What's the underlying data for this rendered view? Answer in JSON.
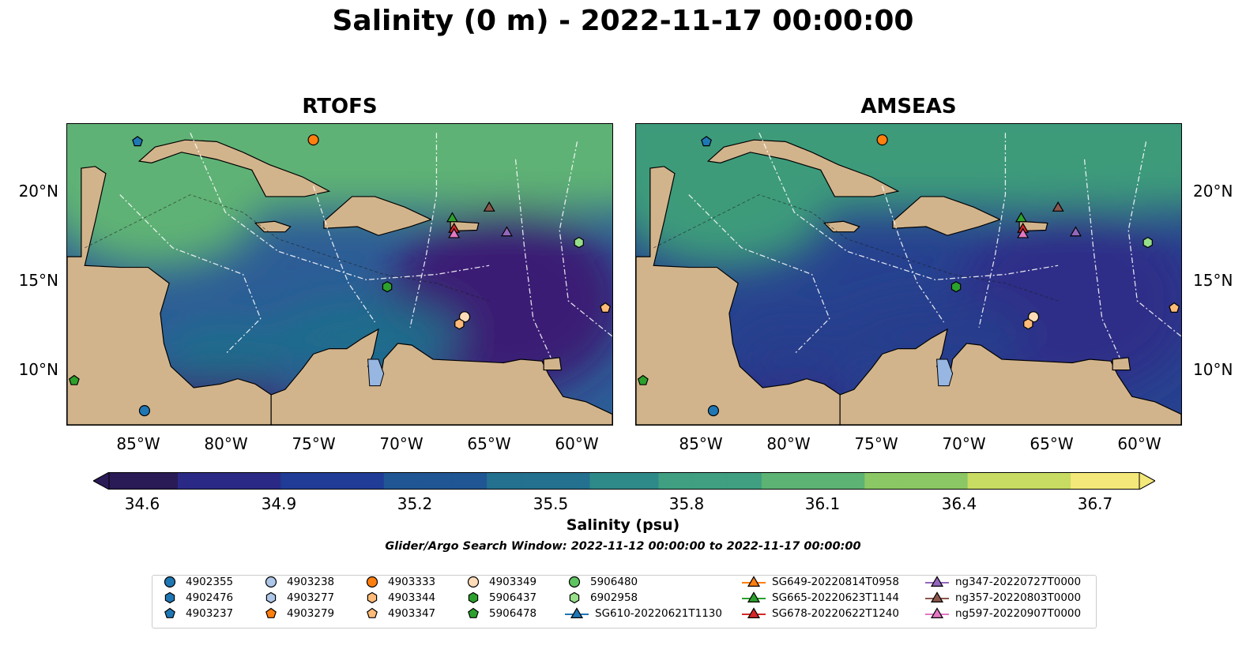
{
  "title": "Salinity (0 m) - 2022-11-17 00:00:00",
  "panels": [
    {
      "title": "RTOFS",
      "colors": {
        "east": "#3b1e74",
        "central": "#2d5d96",
        "north": "#5fb274",
        "nearshore": "#1c6d8c"
      }
    },
    {
      "title": "AMSEAS",
      "colors": {
        "east": "#2e2d88",
        "central": "#27428f",
        "north": "#3c9b7a",
        "nearshore": "#253c8c"
      }
    }
  ],
  "map": {
    "land_color": "#d2b48c",
    "lake_color": "#97b6e1",
    "lon_range": [
      -89,
      -58
    ],
    "lat_range": [
      7,
      24
    ]
  },
  "axes": {
    "lat_labels": [
      "20°N",
      "15°N",
      "10°N"
    ],
    "lon_labels": [
      "85°W",
      "80°W",
      "75°W",
      "70°W",
      "65°W",
      "60°W"
    ]
  },
  "colorbar": {
    "label": "Salinity (psu)",
    "ticks": [
      "34.6",
      "34.9",
      "35.2",
      "35.5",
      "35.8",
      "36.1",
      "36.4",
      "36.7"
    ],
    "range": [
      34.6,
      36.7
    ],
    "extend": "both",
    "colormap": "haline"
  },
  "search_window": "Glider/Argo Search Window: 2022-11-12 00:00:00 to 2022-11-17 00:00:00",
  "legend": {
    "items": [
      {
        "label": "4902355",
        "marker": "circle",
        "color": "#1f77b4"
      },
      {
        "label": "4902476",
        "marker": "hexagon",
        "color": "#1f77b4"
      },
      {
        "label": "4903237",
        "marker": "pentagon",
        "color": "#1f77b4"
      },
      {
        "label": "4903238",
        "marker": "circle",
        "color": "#aec7e8"
      },
      {
        "label": "4903277",
        "marker": "hexagon",
        "color": "#aec7e8"
      },
      {
        "label": "4903279",
        "marker": "pentagon",
        "color": "#ff7f0e"
      },
      {
        "label": "4903333",
        "marker": "circle",
        "color": "#ff7f0e"
      },
      {
        "label": "4903344",
        "marker": "hexagon",
        "color": "#ffbb78"
      },
      {
        "label": "4903347",
        "marker": "pentagon",
        "color": "#ffbb78"
      },
      {
        "label": "4903349",
        "marker": "circle",
        "color": "#ffdcb8"
      },
      {
        "label": "5906437",
        "marker": "hexagon",
        "color": "#2ca02c"
      },
      {
        "label": "5906478",
        "marker": "pentagon",
        "color": "#2ca02c"
      },
      {
        "label": "5906480",
        "marker": "circle",
        "color": "#5ec460"
      },
      {
        "label": "6902958",
        "marker": "hexagon",
        "color": "#98df8a"
      },
      {
        "label": "SG610-20220621T1130",
        "marker": "triangle-line",
        "color": "#1f77b4"
      },
      {
        "label": "SG649-20220814T0958",
        "marker": "triangle-line",
        "color": "#ff7f0e"
      },
      {
        "label": "SG665-20220623T1144",
        "marker": "triangle-line",
        "color": "#2ca02c"
      },
      {
        "label": "SG678-20220622T1240",
        "marker": "triangle-line",
        "color": "#d62728"
      },
      {
        "label": "ng347-20220727T0000",
        "marker": "triangle-line",
        "color": "#9467bd"
      },
      {
        "label": "ng357-20220803T0000",
        "marker": "triangle-line",
        "color": "#8c564b"
      },
      {
        "label": "ng597-20220907T0000",
        "marker": "triangle-line",
        "color": "#e377c2"
      }
    ]
  },
  "platforms": [
    {
      "lon": -85,
      "lat": 23.0,
      "marker": "pentagon",
      "color": "#1f77b4"
    },
    {
      "lon": -75,
      "lat": 23.1,
      "marker": "circle",
      "color": "#ff7f0e"
    },
    {
      "lon": -67.1,
      "lat": 18.7,
      "marker": "triangle",
      "color": "#2ca02c"
    },
    {
      "lon": -65,
      "lat": 19.3,
      "marker": "triangle",
      "color": "#8c564b"
    },
    {
      "lon": -67.0,
      "lat": 18.1,
      "marker": "triangle",
      "color": "#d62728"
    },
    {
      "lon": -67.0,
      "lat": 17.8,
      "marker": "triangle",
      "color": "#e377c2"
    },
    {
      "lon": -64,
      "lat": 17.9,
      "marker": "triangle",
      "color": "#9467bd"
    },
    {
      "lon": -59.9,
      "lat": 17.3,
      "marker": "hexagon",
      "color": "#98df8a"
    },
    {
      "lon": -70.8,
      "lat": 14.8,
      "marker": "hexagon",
      "color": "#2ca02c"
    },
    {
      "lon": -66.4,
      "lat": 13.1,
      "marker": "circle",
      "color": "#ffdcb8"
    },
    {
      "lon": -66.7,
      "lat": 12.7,
      "marker": "hexagon",
      "color": "#ffbb78"
    },
    {
      "lon": -58.4,
      "lat": 13.6,
      "marker": "pentagon",
      "color": "#ffbb78"
    },
    {
      "lon": -88.6,
      "lat": 9.5,
      "marker": "pentagon",
      "color": "#2ca02c"
    },
    {
      "lon": -84.6,
      "lat": 7.8,
      "marker": "circle",
      "color": "#1f77b4"
    }
  ]
}
